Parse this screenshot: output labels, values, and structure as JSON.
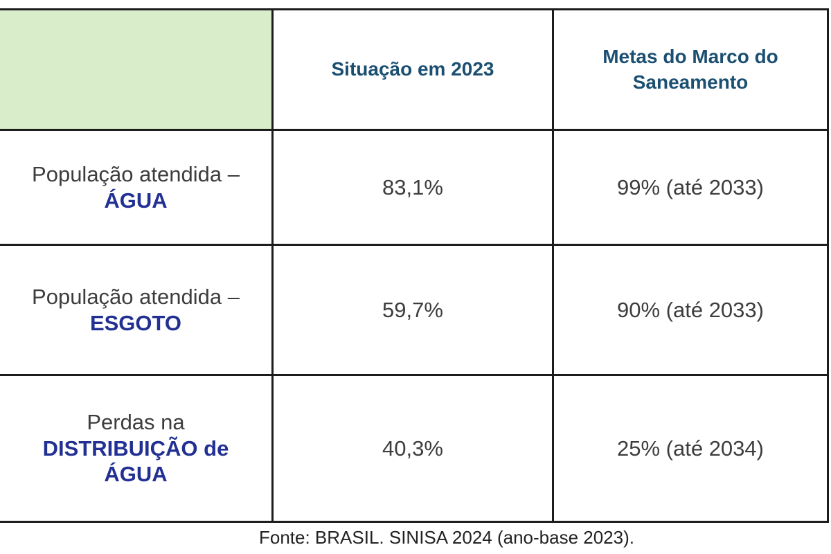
{
  "table": {
    "header": {
      "situacao_label": "Situação em 2023",
      "metas_label": "Metas do Marco do Saneamento"
    },
    "rows": [
      {
        "label_top": "População atendida –",
        "label_bold": "ÁGUA",
        "situacao": "83,1%",
        "meta": "99% (até 2033)"
      },
      {
        "label_top": "População atendida –",
        "label_bold": "ESGOTO",
        "situacao": "59,7%",
        "meta": "90% (até 2033)"
      },
      {
        "label_top": "Perdas na",
        "label_bold": "DISTRIBUIÇÃO de ÁGUA",
        "situacao": "40,3%",
        "meta": "25% (até 2034)"
      }
    ]
  },
  "footer": {
    "source": "Fonte: BRASIL. SINISA 2024 (ano-base 2023)."
  },
  "colors": {
    "green_bg": "#d9edcb",
    "header_text": "#1b4f72",
    "bold_blue": "#223093",
    "body_text": "#3d3d3d",
    "border": "#1c1c1c"
  },
  "chart_data": {
    "type": "table",
    "columns": [
      "",
      "Situação em 2023",
      "Metas do Marco do Saneamento"
    ],
    "rows": [
      [
        "População atendida – ÁGUA",
        "83,1%",
        "99% (até 2033)"
      ],
      [
        "População atendida – ESGOTO",
        "59,7%",
        "90% (até 2033)"
      ],
      [
        "Perdas na DISTRIBUIÇÃO de ÁGUA",
        "40,3%",
        "25% (até 2034)"
      ]
    ],
    "source": "Fonte: BRASIL. SINISA 2024 (ano-base 2023)."
  }
}
